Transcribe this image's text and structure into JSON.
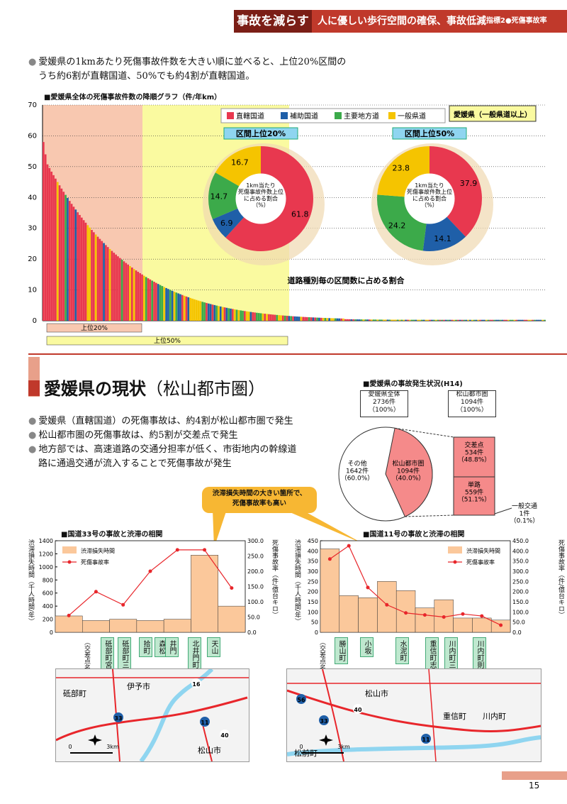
{
  "header": {
    "tag": "事故を減らす",
    "title": "人に優しい歩行空間の確保、事故低減",
    "indicator": "指標2●死傷事故率"
  },
  "intro": {
    "line1": "愛媛県の1kmあたり死傷事故件数を大きい順に並べると、上位20%区間の",
    "line2": "うち約6割が直轄国道、50%でも約4割が直轄国道。"
  },
  "descChart": {
    "title": "■愛媛県全体の死傷事故件数の降順グラフ（件/年km）",
    "yticks": [
      "70",
      "60",
      "50",
      "40",
      "30",
      "20",
      "10",
      "0"
    ],
    "top20": "上位20%",
    "top50": "上位50%",
    "caption": "道路種別毎の区間数に占める割合",
    "region": "愛媛県（一般県道以上）",
    "legend": [
      {
        "label": "直轄国道",
        "color": "#e8384f"
      },
      {
        "label": "補助国道",
        "color": "#1f5fa8"
      },
      {
        "label": "主要地方道",
        "color": "#3caa4a"
      },
      {
        "label": "一般県道",
        "color": "#f5c400"
      }
    ],
    "pie20": {
      "title": "区間上位20%",
      "center": "1km当たり\n死傷事故件数上位\nに占める割合\n（%）"
    },
    "pie50": {
      "title": "区間上位50%",
      "center": "1km当たり\n死傷事故件数上位\nに占める割合\n（%）"
    }
  },
  "chart_data": [
    {
      "type": "pie",
      "title": "区間上位20%",
      "categories": [
        "直轄国道",
        "補助国道",
        "主要地方道",
        "一般県道"
      ],
      "values": [
        61.8,
        6.9,
        14.7,
        16.7
      ]
    },
    {
      "type": "pie",
      "title": "区間上位50%",
      "categories": [
        "直轄国道",
        "補助国道",
        "主要地方道",
        "一般県道"
      ],
      "values": [
        37.9,
        14.1,
        24.2,
        23.8
      ]
    },
    {
      "type": "pie",
      "title": "■愛媛県の事故発生状況(H14)",
      "categories": [
        "松山都市圏",
        "その他"
      ],
      "values": [
        1094,
        1642
      ]
    },
    {
      "type": "bar",
      "title": "■国道33号の事故と渋滞の相関",
      "categories": [
        "砥部町宮内",
        "砥部町三角",
        "拾町",
        "森松",
        "井門",
        "北井門町",
        "天山"
      ],
      "series": [
        {
          "name": "渋滞損失時間",
          "values": [
            250,
            180,
            200,
            180,
            200,
            1180,
            400
          ]
        },
        {
          "name": "死傷事故率",
          "values": [
            55,
            133,
            90,
            200,
            270,
            270,
            145
          ]
        }
      ],
      "ylim": [
        0,
        1400
      ],
      "y2lim": [
        0,
        300
      ]
    },
    {
      "type": "bar",
      "title": "■国道11号の事故と渋滞の相関",
      "categories": [
        "勝山町",
        "小坂",
        "",
        "水泥町",
        "",
        "重信町志津川",
        "",
        "川内町三十二小学校前",
        "",
        "川内町則之内"
      ],
      "series": [
        {
          "name": "渋滞損失時間",
          "values": [
            410,
            180,
            170,
            250,
            205,
            120,
            160,
            70,
            70,
            60
          ]
        },
        {
          "name": "死傷事故率",
          "values": [
            360,
            425,
            220,
            135,
            95,
            85,
            75,
            90,
            80,
            35
          ]
        }
      ],
      "ylim": [
        0,
        450
      ],
      "y2lim": [
        0,
        450
      ]
    }
  ],
  "section": {
    "title": "愛媛県の現状",
    "sub": "（松山都市圏）",
    "bullets": [
      "愛媛県（直轄国道）の死傷事故は、約4割が松山都市圏で発生",
      "松山都市圏の死傷事故は、約5割が交差点で発生",
      "地方部では、高速道路の交通分担率が低く、市街地内の幹線道",
      "路に通過交通が流入することで死傷事故が発生"
    ]
  },
  "accident": {
    "title": "■愛媛県の事故発生状況(H14)",
    "whole": "愛媛県全体\n2736件\n（100%）",
    "matsu": "松山都市圏\n1094件\n（100%）",
    "other": "その他\n1642件\n（60.0%）",
    "matsuPie": "松山都市圏\n1094件\n（40.0%）",
    "inter": "交差点\n534件\n（48.8%）",
    "single": "単路\n559件\n（51.1%）",
    "general": "一般交通\n1件\n（0.1%）"
  },
  "callout": "渋滞損失時間の大きい箇所で、\n死傷事故率も高い",
  "r33": {
    "title": "■国道33号の事故と渋滞の相関",
    "ylabelL": "渋滞損失時間（千人時間/年）",
    "ylabelR": "死傷事故率（件/億台キロ）",
    "yticksL": [
      "1400",
      "1200",
      "1000",
      "800",
      "600",
      "400",
      "200",
      "0"
    ],
    "yticksR": [
      "300.0",
      "250.0",
      "200.0",
      "150.0",
      "100.0",
      "50.0",
      "0.0"
    ],
    "legend1": "渋滞損失時間",
    "legend2": "死傷事故率",
    "xhead": "（交差点名）",
    "names": [
      "砥部町宮内",
      "砥部町三角",
      "拾町",
      "森松",
      "井門",
      "北井門町",
      "天山"
    ]
  },
  "r11": {
    "title": "■国道11号の事故と渋滞の相関",
    "ylabelL": "渋滞損失時間（千人時間/年）",
    "ylabelR": "死傷事故率（件/億台キロ）",
    "yticksL": [
      "450",
      "400",
      "350",
      "300",
      "250",
      "200",
      "150",
      "100",
      "50",
      "0"
    ],
    "yticksR": [
      "450.0",
      "400.0",
      "350.0",
      "300.0",
      "250.0",
      "200.0",
      "150.0",
      "100.0",
      "50.0",
      "0.0"
    ],
    "legend1": "渋滞損失時間",
    "legend2": "死傷事故率",
    "xhead": "（交差点名）",
    "names": [
      "勝山町",
      "小坂",
      "水泥町",
      "重信町志津川",
      "川内町三十二小学校前",
      "川内町則之内"
    ]
  },
  "map1": {
    "labels": [
      "砥部町",
      "伊予市",
      "松山市",
      "33",
      "11",
      "40",
      "16"
    ],
    "scale": "3km"
  },
  "map2": {
    "labels": [
      "松山市",
      "松前町",
      "重信町",
      "川内町",
      "33",
      "11",
      "56",
      "40"
    ],
    "scale": "3km"
  },
  "page": "15"
}
